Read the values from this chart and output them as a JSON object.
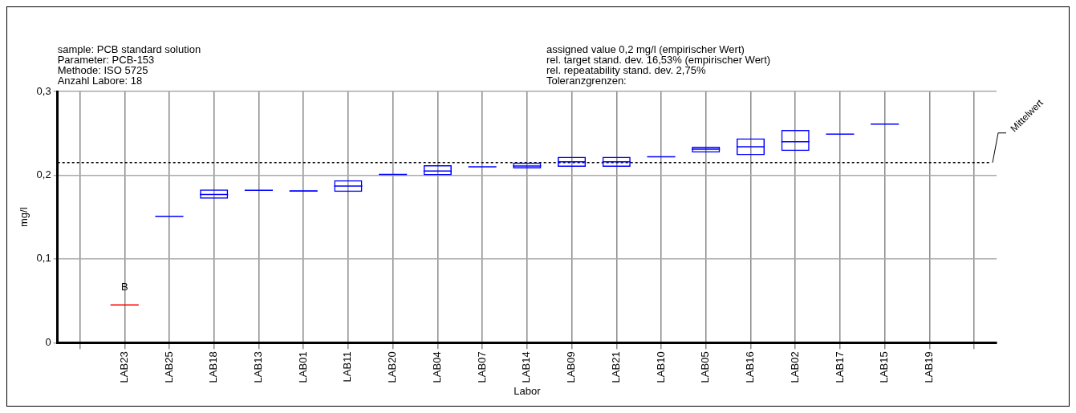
{
  "chart_data": {
    "type": "box",
    "xlabel": "Labor",
    "ylabel": "mg/l",
    "categories": [
      null,
      "LAB23",
      "LAB25",
      "LAB18",
      "LAB13",
      "LAB01",
      "LAB11",
      "LAB20",
      "LAB04",
      "LAB07",
      "LAB14",
      "LAB09",
      "LAB21",
      "LAB10",
      "LAB05",
      "LAB16",
      "LAB02",
      "LAB17",
      "LAB15",
      "LAB19",
      null
    ],
    "series": [
      {
        "colors": [
          null,
          "#ff0000",
          "#0000ff",
          "#0000ff",
          "#0000ff",
          "#0000ff",
          "#0000ff",
          "#0000ff",
          "#0000ff",
          "#0000ff",
          "#0000ff",
          "#0000ff",
          "#0000ff",
          "#0000ff",
          "#0000ff",
          "#0000ff",
          "#0000ff",
          "#0000ff",
          "#0000ff",
          null,
          null
        ],
        "boxes": [
          null,
          {
            "low": 0.045,
            "q1": 0.045,
            "median": 0.045,
            "q3": 0.045,
            "high": 0.045
          },
          {
            "low": 0.151,
            "q1": 0.151,
            "median": 0.151,
            "q3": 0.151,
            "high": 0.151
          },
          {
            "low": 0.172,
            "q1": 0.172,
            "median": 0.177,
            "q3": 0.183,
            "high": 0.183
          },
          {
            "low": 0.182,
            "q1": 0.182,
            "median": 0.182,
            "q3": 0.182,
            "high": 0.182
          },
          {
            "low": 0.181,
            "q1": 0.181,
            "median": 0.181,
            "q3": 0.182,
            "high": 0.182
          },
          {
            "low": 0.18,
            "q1": 0.18,
            "median": 0.187,
            "q3": 0.194,
            "high": 0.194
          },
          {
            "low": 0.201,
            "q1": 0.201,
            "median": 0.201,
            "q3": 0.201,
            "high": 0.201
          },
          {
            "low": 0.2,
            "q1": 0.2,
            "median": 0.205,
            "q3": 0.212,
            "high": 0.212
          },
          {
            "low": 0.21,
            "q1": 0.21,
            "median": 0.21,
            "q3": 0.21,
            "high": 0.21
          },
          {
            "low": 0.208,
            "q1": 0.208,
            "median": 0.211,
            "q3": 0.215,
            "high": 0.215
          },
          {
            "low": 0.21,
            "q1": 0.21,
            "median": 0.216,
            "q3": 0.222,
            "high": 0.222
          },
          {
            "low": 0.21,
            "q1": 0.21,
            "median": 0.216,
            "q3": 0.222,
            "high": 0.222
          },
          {
            "low": 0.222,
            "q1": 0.222,
            "median": 0.222,
            "q3": 0.222,
            "high": 0.222
          },
          {
            "low": 0.227,
            "q1": 0.227,
            "median": 0.231,
            "q3": 0.234,
            "high": 0.234
          },
          {
            "low": 0.224,
            "q1": 0.224,
            "median": 0.234,
            "q3": 0.244,
            "high": 0.244
          },
          {
            "low": 0.229,
            "q1": 0.229,
            "median": 0.24,
            "q3": 0.254,
            "high": 0.254
          },
          {
            "low": 0.249,
            "q1": 0.249,
            "median": 0.249,
            "q3": 0.249,
            "high": 0.249
          },
          {
            "low": 0.261,
            "q1": 0.261,
            "median": 0.261,
            "q3": 0.261,
            "high": 0.261
          },
          null,
          null
        ]
      }
    ],
    "ylim": [
      0,
      0.3
    ],
    "yticks": [
      0,
      {
        "value": 0.1,
        "label": "0,1"
      },
      {
        "value": 0.2,
        "label": "0,2"
      },
      {
        "value": 0.3,
        "label": "0,3"
      }
    ],
    "grid": true,
    "legend": false,
    "ref_lines": [
      {
        "axis": "y",
        "value": 0.215,
        "label": "Mittelwert",
        "color": "#000000",
        "line_style": "dotted"
      }
    ],
    "annotations": [
      "sample: PCB standard solution",
      "Parameter: PCB-153",
      "Methode: ISO 5725",
      "Anzahl Labore: 18",
      "assigned value 0,2 mg/l (empirischer Wert)",
      "rel. target stand. dev. 16,53% (empirischer Wert)",
      "rel. repeatability stand. dev. 2,75%",
      "Toleranzgrenzen:",
      {
        "text": "B",
        "x": "LAB23",
        "y": 0.045
      }
    ]
  }
}
